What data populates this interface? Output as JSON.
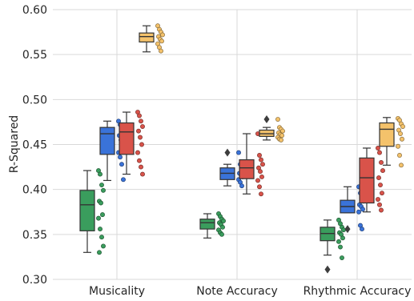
{
  "chart_data": {
    "type": "box",
    "ylabel": "R-Squared",
    "xlabel": "",
    "ylim": [
      0.3,
      0.6
    ],
    "yticks": [
      "0.30",
      "0.35",
      "0.40",
      "0.45",
      "0.50",
      "0.55",
      "0.60"
    ],
    "grid": true,
    "categories": [
      "Musicality",
      "Note Accuracy",
      "Rhythmic Accuracy"
    ],
    "series": [
      {
        "color": "#3a9d5d",
        "boxes": [
          {
            "whislo": 0.33,
            "q1": 0.354,
            "med": 0.383,
            "q3": 0.399,
            "whishi": 0.421,
            "fliers": [],
            "points": [
              0.421,
              0.417,
              0.405,
              0.399,
              0.387,
              0.385,
              0.372,
              0.368,
              0.356,
              0.347,
              0.337,
              0.33
            ]
          },
          {
            "whislo": 0.346,
            "q1": 0.356,
            "med": 0.363,
            "q3": 0.367,
            "whishi": 0.373,
            "fliers": [],
            "points": [
              0.373,
              0.37,
              0.367,
              0.365,
              0.363,
              0.361,
              0.358,
              0.355,
              0.352,
              0.35
            ]
          },
          {
            "whislo": 0.327,
            "q1": 0.343,
            "med": 0.351,
            "q3": 0.358,
            "whishi": 0.366,
            "fliers": [
              0.311
            ],
            "points": [
              0.366,
              0.362,
              0.358,
              0.355,
              0.352,
              0.35,
              0.346,
              0.342,
              0.336,
              0.324
            ]
          }
        ]
      },
      {
        "color": "#3a73d9",
        "boxes": [
          {
            "whislo": 0.41,
            "q1": 0.439,
            "med": 0.462,
            "q3": 0.469,
            "whishi": 0.476,
            "fliers": [],
            "points": [
              0.476,
              0.472,
              0.469,
              0.466,
              0.46,
              0.455,
              0.448,
              0.441,
              0.436,
              0.428,
              0.411
            ]
          },
          {
            "whislo": 0.404,
            "q1": 0.411,
            "med": 0.418,
            "q3": 0.424,
            "whishi": 0.428,
            "fliers": [
              0.441
            ],
            "points": [
              0.441,
              0.428,
              0.425,
              0.421,
              0.418,
              0.416,
              0.414,
              0.411,
              0.408,
              0.404
            ]
          },
          {
            "whislo": 0.374,
            "q1": 0.374,
            "med": 0.381,
            "q3": 0.388,
            "whishi": 0.403,
            "fliers": [
              0.356
            ],
            "points": [
              0.403,
              0.396,
              0.391,
              0.387,
              0.383,
              0.381,
              0.378,
              0.375,
              0.36,
              0.356
            ]
          }
        ]
      },
      {
        "color": "#d9534a",
        "boxes": [
          {
            "whislo": 0.417,
            "q1": 0.439,
            "med": 0.464,
            "q3": 0.474,
            "whishi": 0.486,
            "fliers": [],
            "points": [
              0.486,
              0.482,
              0.476,
              0.47,
              0.465,
              0.458,
              0.45,
              0.441,
              0.432,
              0.425,
              0.417
            ]
          },
          {
            "whislo": 0.395,
            "q1": 0.412,
            "med": 0.424,
            "q3": 0.433,
            "whishi": 0.462,
            "fliers": [],
            "points": [
              0.462,
              0.438,
              0.433,
              0.428,
              0.424,
              0.42,
              0.414,
              0.41,
              0.403,
              0.395
            ]
          },
          {
            "whislo": 0.375,
            "q1": 0.385,
            "med": 0.413,
            "q3": 0.435,
            "whishi": 0.446,
            "fliers": [],
            "points": [
              0.446,
              0.441,
              0.43,
              0.421,
              0.413,
              0.405,
              0.396,
              0.389,
              0.383,
              0.377
            ]
          }
        ]
      },
      {
        "color": "#f4c26b",
        "boxes": [
          {
            "whislo": 0.553,
            "q1": 0.564,
            "med": 0.57,
            "q3": 0.574,
            "whishi": 0.582,
            "fliers": [],
            "points": [
              0.582,
              0.578,
              0.575,
              0.572,
              0.57,
              0.567,
              0.565,
              0.562,
              0.558,
              0.554
            ]
          },
          {
            "whislo": 0.455,
            "q1": 0.459,
            "med": 0.462,
            "q3": 0.466,
            "whishi": 0.469,
            "fliers": [
              0.478
            ],
            "points": [
              0.478,
              0.469,
              0.467,
              0.465,
              0.463,
              0.461,
              0.46,
              0.458,
              0.456,
              0.455
            ]
          },
          {
            "whislo": 0.427,
            "q1": 0.448,
            "med": 0.467,
            "q3": 0.474,
            "whishi": 0.48,
            "fliers": [],
            "points": [
              0.479,
              0.477,
              0.473,
              0.47,
              0.466,
              0.462,
              0.456,
              0.448,
              0.438,
              0.427
            ]
          }
        ]
      }
    ]
  }
}
